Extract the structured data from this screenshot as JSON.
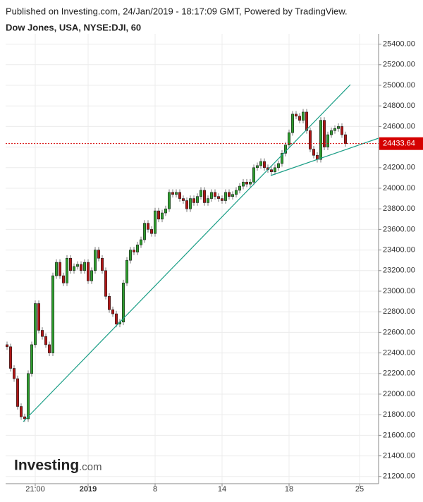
{
  "header": {
    "published": "Published on Investing.com, 24/Jan/2019 - 18:17:09 GMT, Powered by TradingView.",
    "logo": "Investing",
    "logo_suffix": ".com"
  },
  "chart_data": {
    "type": "candlestick",
    "title": "Dow Jones, USA, NYSE:DJI, 60",
    "up_color": "#2e9c2e",
    "down_color": "#b01616",
    "open": [
      22480,
      22460,
      22250,
      22150,
      21880,
      21780,
      21760,
      22200,
      22480,
      22880,
      22620,
      22560,
      22480,
      22400,
      23150,
      23280,
      23150,
      23080,
      23320,
      23200,
      23240,
      23260,
      23200,
      23280,
      23100,
      23200,
      23400,
      23320,
      23200,
      22950,
      22820,
      22780,
      22680,
      22700,
      23080,
      23300,
      23400,
      23380,
      23450,
      23500,
      23660,
      23600,
      23560,
      23780,
      23700,
      23760,
      23800,
      23960,
      23940,
      23960,
      23900,
      23880,
      23800,
      23900,
      23860,
      23920,
      23980,
      23860,
      23900,
      23960,
      23920,
      23900,
      23880,
      23960,
      23920,
      23940,
      23980,
      24020,
      24060,
      24040,
      24060,
      24200,
      24220,
      24260,
      24200,
      24180,
      24160,
      24200,
      24240,
      24340,
      24420,
      24540,
      24720,
      24700,
      24660,
      24740,
      24560,
      24380,
      24320,
      24280,
      24660,
      24400,
      24520,
      24560,
      24580,
      24600,
      24520
    ],
    "high": [
      22510,
      22490,
      22280,
      22180,
      21910,
      21810,
      22230,
      22510,
      22910,
      22910,
      22650,
      22590,
      22510,
      23180,
      23310,
      23310,
      23180,
      23350,
      23350,
      23270,
      23290,
      23290,
      23310,
      23310,
      23230,
      23430,
      23430,
      23350,
      23230,
      22980,
      22850,
      22810,
      22730,
      23110,
      23330,
      23430,
      23430,
      23480,
      23530,
      23690,
      23690,
      23630,
      23810,
      23810,
      23790,
      23830,
      23990,
      23990,
      23990,
      23990,
      23930,
      23910,
      23930,
      23930,
      23950,
      24010,
      24010,
      23930,
      23990,
      23990,
      23950,
      23930,
      23990,
      23990,
      23970,
      24010,
      24050,
      24090,
      24090,
      24090,
      24230,
      24250,
      24290,
      24290,
      24230,
      24210,
      24230,
      24270,
      24370,
      24450,
      24570,
      24750,
      24750,
      24730,
      24770,
      24770,
      24590,
      24410,
      24350,
      24690,
      24690,
      24550,
      24590,
      24610,
      24630,
      24630,
      24550
    ],
    "low": [
      22430,
      22220,
      22120,
      21850,
      21750,
      21730,
      21730,
      22170,
      22450,
      22590,
      22530,
      22450,
      22370,
      22370,
      23120,
      23120,
      23050,
      23050,
      23170,
      23170,
      23210,
      23170,
      23170,
      23070,
      23070,
      23170,
      23290,
      23170,
      22920,
      22790,
      22750,
      22650,
      22650,
      22670,
      23050,
      23270,
      23350,
      23350,
      23420,
      23470,
      23570,
      23530,
      23530,
      23670,
      23670,
      23730,
      23770,
      23910,
      23910,
      23870,
      23850,
      23770,
      23770,
      23830,
      23830,
      23890,
      23830,
      23830,
      23870,
      23890,
      23870,
      23850,
      23850,
      23890,
      23890,
      23910,
      23950,
      23990,
      24010,
      24010,
      24030,
      24170,
      24190,
      24170,
      24150,
      24130,
      24130,
      24170,
      24210,
      24310,
      24390,
      24510,
      24670,
      24630,
      24630,
      24530,
      24350,
      24290,
      24250,
      24250,
      24370,
      24370,
      24490,
      24530,
      24550,
      24490,
      24404
    ],
    "close": [
      22460,
      22250,
      22150,
      21880,
      21780,
      21760,
      22200,
      22480,
      22880,
      22620,
      22560,
      22480,
      22400,
      23150,
      23280,
      23150,
      23080,
      23320,
      23200,
      23240,
      23260,
      23200,
      23280,
      23100,
      23200,
      23400,
      23320,
      23200,
      22950,
      22820,
      22780,
      22680,
      22700,
      23080,
      23300,
      23400,
      23380,
      23450,
      23500,
      23660,
      23600,
      23560,
      23780,
      23700,
      23760,
      23800,
      23960,
      23940,
      23960,
      23900,
      23880,
      23800,
      23900,
      23860,
      23920,
      23980,
      23860,
      23900,
      23960,
      23920,
      23900,
      23880,
      23960,
      23920,
      23940,
      23980,
      24020,
      24060,
      24040,
      24060,
      24200,
      24220,
      24260,
      24200,
      24180,
      24160,
      24200,
      24240,
      24340,
      24420,
      24540,
      24720,
      24700,
      24660,
      24740,
      24560,
      24380,
      24320,
      24280,
      24660,
      24400,
      24520,
      24560,
      24580,
      24600,
      24520,
      24433.64
    ],
    "last_price": {
      "value": 24433.64,
      "label": "24433.64",
      "color": "#d50000"
    },
    "xlim": [
      -0.4,
      105.4
    ],
    "xticks": [
      {
        "value": 8,
        "label": "21:00"
      },
      {
        "value": 23,
        "label": "2019"
      },
      {
        "value": 42,
        "label": "8"
      },
      {
        "value": 61,
        "label": "14"
      },
      {
        "value": 80,
        "label": "18"
      },
      {
        "value": 100,
        "label": "25"
      }
    ],
    "ylim": [
      21130,
      25500
    ],
    "yticks": [
      {
        "value": 21200,
        "label": "21200.00"
      },
      {
        "value": 21400,
        "label": "21400.00"
      },
      {
        "value": 21600,
        "label": "21600.00"
      },
      {
        "value": 21800,
        "label": "21800.00"
      },
      {
        "value": 22000,
        "label": "22000.00"
      },
      {
        "value": 22200,
        "label": "22200.00"
      },
      {
        "value": 22400,
        "label": "22400.00"
      },
      {
        "value": 22600,
        "label": "22600.00"
      },
      {
        "value": 22800,
        "label": "22800.00"
      },
      {
        "value": 23000,
        "label": "23000.00"
      },
      {
        "value": 23200,
        "label": "23200.00"
      },
      {
        "value": 23400,
        "label": "23400.00"
      },
      {
        "value": 23600,
        "label": "23600.00"
      },
      {
        "value": 23800,
        "label": "23800.00"
      },
      {
        "value": 24000,
        "label": "24000.00"
      },
      {
        "value": 24200,
        "label": "24200.00"
      },
      {
        "value": 24400,
        "label": "24400.00"
      },
      {
        "value": 24600,
        "label": "24600.00"
      },
      {
        "value": 24800,
        "label": "24800.00"
      },
      {
        "value": 25000,
        "label": "25000.00"
      },
      {
        "value": 25200,
        "label": "25200.00"
      },
      {
        "value": 25400,
        "label": "25400.00"
      }
    ],
    "grid": true
  }
}
